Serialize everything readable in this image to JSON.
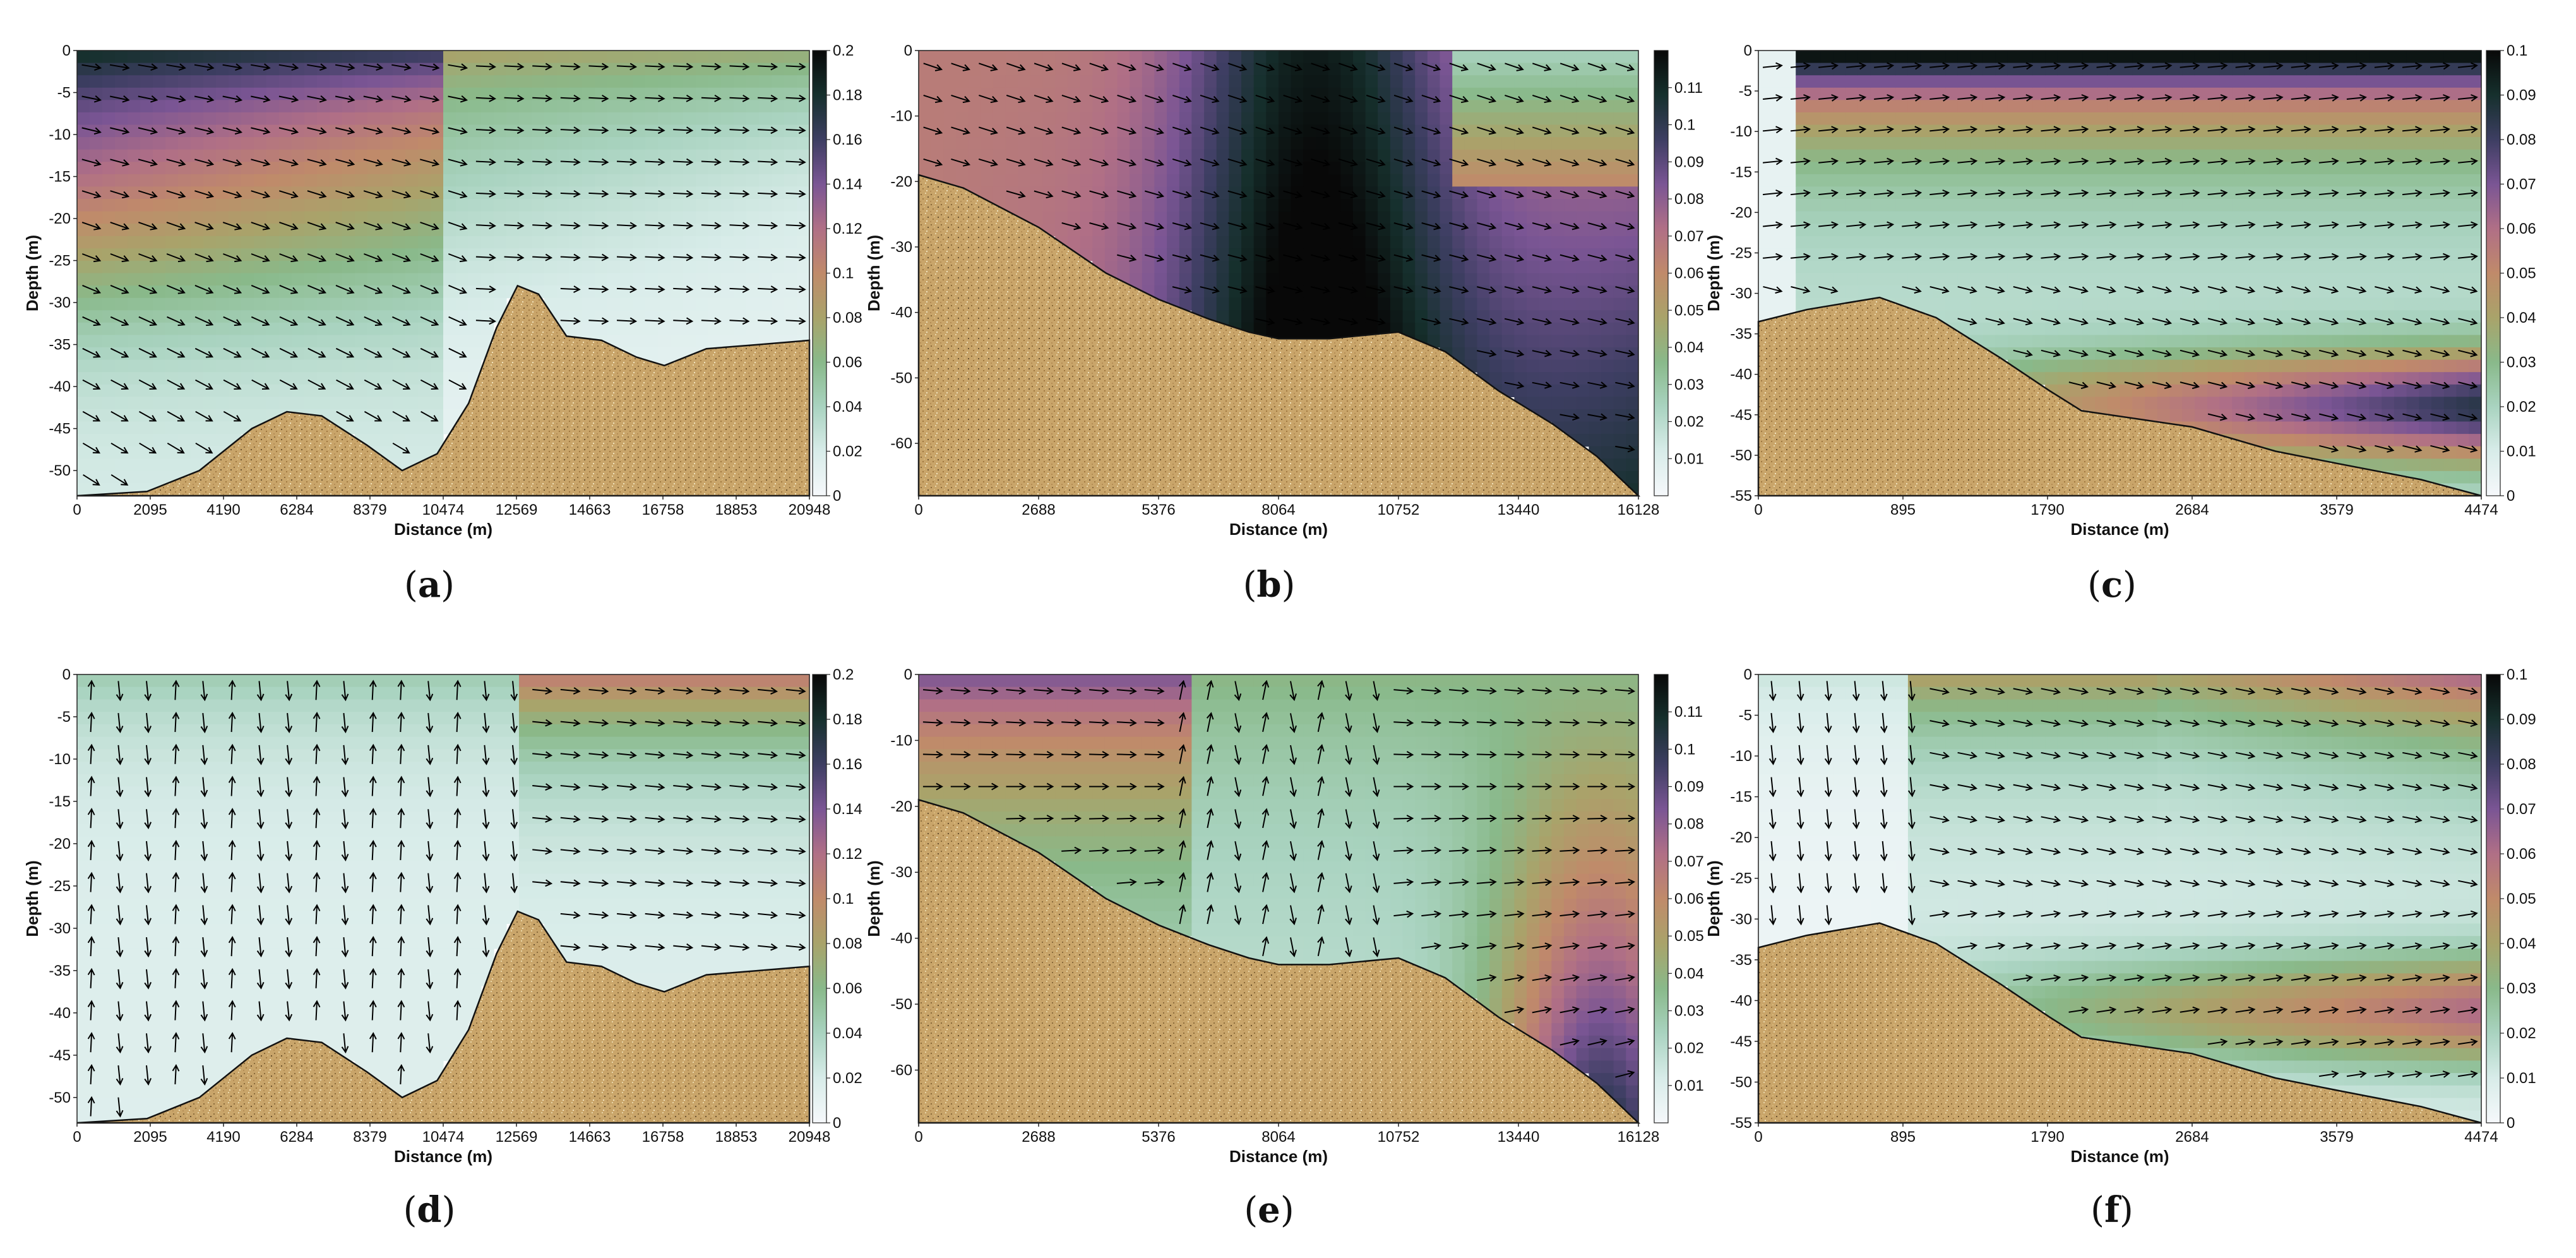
{
  "colors": {
    "seabed": "#c9a56a",
    "seabed_dark": "#a9854a",
    "grid_text": "#111111",
    "arrow": "#000000",
    "colormap": [
      "#f6f8fb",
      "#d8ece9",
      "#a9d3c0",
      "#89b98a",
      "#a9a36a",
      "#c08a6a",
      "#b06f86",
      "#7a5594",
      "#3d3e62",
      "#16302d",
      "#080808"
    ]
  },
  "chart_data": [
    {
      "id": "a",
      "type": "heatmap",
      "title": "",
      "caption": "a",
      "xlabel": "Distance (m)",
      "ylabel": "Depth (m)",
      "xlim": [
        0,
        20948
      ],
      "ylim": [
        -53,
        0
      ],
      "xticks": [
        "0",
        "2095",
        "4190",
        "6284",
        "8379",
        "10474",
        "12569",
        "14663",
        "16758",
        "18853",
        "20948"
      ],
      "yticks": [
        "0",
        "-5",
        "-10",
        "-15",
        "-20",
        "-25",
        "-30",
        "-35",
        "-40",
        "-45",
        "-50"
      ],
      "colorbar": {
        "min": 0,
        "max": 0.2,
        "ticks": [
          "0.2",
          "0.18",
          "0.16",
          "0.14",
          "0.12",
          "0.1",
          "0.08",
          "0.06",
          "0.04",
          "0.02",
          "0"
        ]
      },
      "bathymetry": [
        [
          0,
          -53
        ],
        [
          2000,
          -52.5
        ],
        [
          3500,
          -50
        ],
        [
          5000,
          -45
        ],
        [
          6000,
          -43
        ],
        [
          7000,
          -43.5
        ],
        [
          8300,
          -47
        ],
        [
          9300,
          -50
        ],
        [
          10300,
          -48
        ],
        [
          11200,
          -42
        ],
        [
          12000,
          -33
        ],
        [
          12600,
          -28
        ],
        [
          13200,
          -29
        ],
        [
          14000,
          -34
        ],
        [
          15000,
          -34.5
        ],
        [
          16000,
          -36.5
        ],
        [
          16800,
          -37.5
        ],
        [
          18000,
          -35.5
        ],
        [
          19500,
          -35
        ],
        [
          20948,
          -34.5
        ]
      ]
    },
    {
      "id": "b",
      "type": "heatmap",
      "title": "",
      "caption": "b",
      "xlabel": "Distance (m)",
      "ylabel": "Depth (m)",
      "xlim": [
        0,
        16128
      ],
      "ylim": [
        -68,
        0
      ],
      "xticks": [
        "0",
        "2688",
        "5376",
        "8064",
        "10752",
        "13440",
        "16128"
      ],
      "yticks": [
        "0",
        "-10",
        "-20",
        "-30",
        "-40",
        "-50",
        "-60"
      ],
      "colorbar": {
        "min": 0,
        "max": 0.12,
        "ticks": [
          "0.11",
          "0.1",
          "0.09",
          "0.08",
          "0.07",
          "0.06",
          "0.05",
          "0.04",
          "0.03",
          "0.02",
          "0.01"
        ]
      },
      "bathymetry": [
        [
          0,
          -19
        ],
        [
          1000,
          -21
        ],
        [
          2688,
          -27
        ],
        [
          4200,
          -34
        ],
        [
          5376,
          -38
        ],
        [
          6500,
          -41
        ],
        [
          7400,
          -43
        ],
        [
          8064,
          -44
        ],
        [
          9200,
          -44
        ],
        [
          10752,
          -43
        ],
        [
          11800,
          -46
        ],
        [
          13000,
          -52
        ],
        [
          14200,
          -57
        ],
        [
          15200,
          -62
        ],
        [
          16128,
          -68
        ]
      ]
    },
    {
      "id": "c",
      "type": "heatmap",
      "title": "",
      "caption": "c",
      "xlabel": "Distance (m)",
      "ylabel": "Depth (m)",
      "xlim": [
        0,
        4474
      ],
      "ylim": [
        -55,
        0
      ],
      "xticks": [
        "0",
        "895",
        "1790",
        "2684",
        "3579",
        "4474"
      ],
      "yticks": [
        "0",
        "-5",
        "-10",
        "-15",
        "-20",
        "-25",
        "-30",
        "-35",
        "-40",
        "-45",
        "-50",
        "-55"
      ],
      "colorbar": {
        "min": 0,
        "max": 0.1,
        "ticks": [
          "0.1",
          "0.09",
          "0.08",
          "0.07",
          "0.06",
          "0.05",
          "0.04",
          "0.03",
          "0.02",
          "0.01",
          "0"
        ]
      },
      "bathymetry": [
        [
          0,
          -33.5
        ],
        [
          300,
          -32
        ],
        [
          750,
          -30.5
        ],
        [
          1100,
          -33
        ],
        [
          1500,
          -38
        ],
        [
          1800,
          -42
        ],
        [
          2000,
          -44.5
        ],
        [
          2684,
          -46.5
        ],
        [
          3200,
          -49.5
        ],
        [
          3579,
          -51
        ],
        [
          4100,
          -53
        ],
        [
          4474,
          -55
        ]
      ]
    },
    {
      "id": "d",
      "type": "heatmap",
      "title": "",
      "caption": "d",
      "xlabel": "Distance (m)",
      "ylabel": "Depth (m)",
      "xlim": [
        0,
        20948
      ],
      "ylim": [
        -53,
        0
      ],
      "xticks": [
        "0",
        "2095",
        "4190",
        "6284",
        "8379",
        "10474",
        "12569",
        "14663",
        "16758",
        "18853",
        "20948"
      ],
      "yticks": [
        "0",
        "-5",
        "-10",
        "-15",
        "-20",
        "-25",
        "-30",
        "-35",
        "-40",
        "-45",
        "-50"
      ],
      "colorbar": {
        "min": 0,
        "max": 0.2,
        "ticks": [
          "0.2",
          "0.18",
          "0.16",
          "0.14",
          "0.12",
          "0.1",
          "0.08",
          "0.06",
          "0.04",
          "0.02",
          "0"
        ]
      },
      "bathymetry": [
        [
          0,
          -53
        ],
        [
          2000,
          -52.5
        ],
        [
          3500,
          -50
        ],
        [
          5000,
          -45
        ],
        [
          6000,
          -43
        ],
        [
          7000,
          -43.5
        ],
        [
          8300,
          -47
        ],
        [
          9300,
          -50
        ],
        [
          10300,
          -48
        ],
        [
          11200,
          -42
        ],
        [
          12000,
          -33
        ],
        [
          12600,
          -28
        ],
        [
          13200,
          -29
        ],
        [
          14000,
          -34
        ],
        [
          15000,
          -34.5
        ],
        [
          16000,
          -36.5
        ],
        [
          16800,
          -37.5
        ],
        [
          18000,
          -35.5
        ],
        [
          19500,
          -35
        ],
        [
          20948,
          -34.5
        ]
      ]
    },
    {
      "id": "e",
      "type": "heatmap",
      "title": "",
      "caption": "e",
      "xlabel": "Distance (m)",
      "ylabel": "Depth (m)",
      "xlim": [
        0,
        16128
      ],
      "ylim": [
        -68,
        0
      ],
      "xticks": [
        "0",
        "2688",
        "5376",
        "8064",
        "10752",
        "13440",
        "16128"
      ],
      "yticks": [
        "0",
        "-10",
        "-20",
        "-30",
        "-40",
        "-50",
        "-60"
      ],
      "colorbar": {
        "min": 0,
        "max": 0.12,
        "ticks": [
          "0.11",
          "0.1",
          "0.09",
          "0.08",
          "0.07",
          "0.06",
          "0.05",
          "0.04",
          "0.03",
          "0.02",
          "0.01"
        ]
      },
      "bathymetry": [
        [
          0,
          -19
        ],
        [
          1000,
          -21
        ],
        [
          2688,
          -27
        ],
        [
          4200,
          -34
        ],
        [
          5376,
          -38
        ],
        [
          6500,
          -41
        ],
        [
          7400,
          -43
        ],
        [
          8064,
          -44
        ],
        [
          9200,
          -44
        ],
        [
          10752,
          -43
        ],
        [
          11800,
          -46
        ],
        [
          13000,
          -52
        ],
        [
          14200,
          -57
        ],
        [
          15200,
          -62
        ],
        [
          16128,
          -68
        ]
      ]
    },
    {
      "id": "f",
      "type": "heatmap",
      "title": "",
      "caption": "f",
      "xlabel": "Distance (m)",
      "ylabel": "Depth (m)",
      "xlim": [
        0,
        4474
      ],
      "ylim": [
        -55,
        0
      ],
      "xticks": [
        "0",
        "895",
        "1790",
        "2684",
        "3579",
        "4474"
      ],
      "yticks": [
        "0",
        "-5",
        "-10",
        "-15",
        "-20",
        "-25",
        "-30",
        "-35",
        "-40",
        "-45",
        "-50",
        "-55"
      ],
      "colorbar": {
        "min": 0,
        "max": 0.1,
        "ticks": [
          "0.1",
          "0.09",
          "0.08",
          "0.07",
          "0.06",
          "0.05",
          "0.04",
          "0.03",
          "0.02",
          "0.01",
          "0"
        ]
      },
      "bathymetry": [
        [
          0,
          -33.5
        ],
        [
          300,
          -32
        ],
        [
          750,
          -30.5
        ],
        [
          1100,
          -33
        ],
        [
          1500,
          -38
        ],
        [
          1800,
          -42
        ],
        [
          2000,
          -44.5
        ],
        [
          2684,
          -46.5
        ],
        [
          3200,
          -49.5
        ],
        [
          3579,
          -51
        ],
        [
          4100,
          -53
        ],
        [
          4474,
          -55
        ]
      ]
    }
  ]
}
